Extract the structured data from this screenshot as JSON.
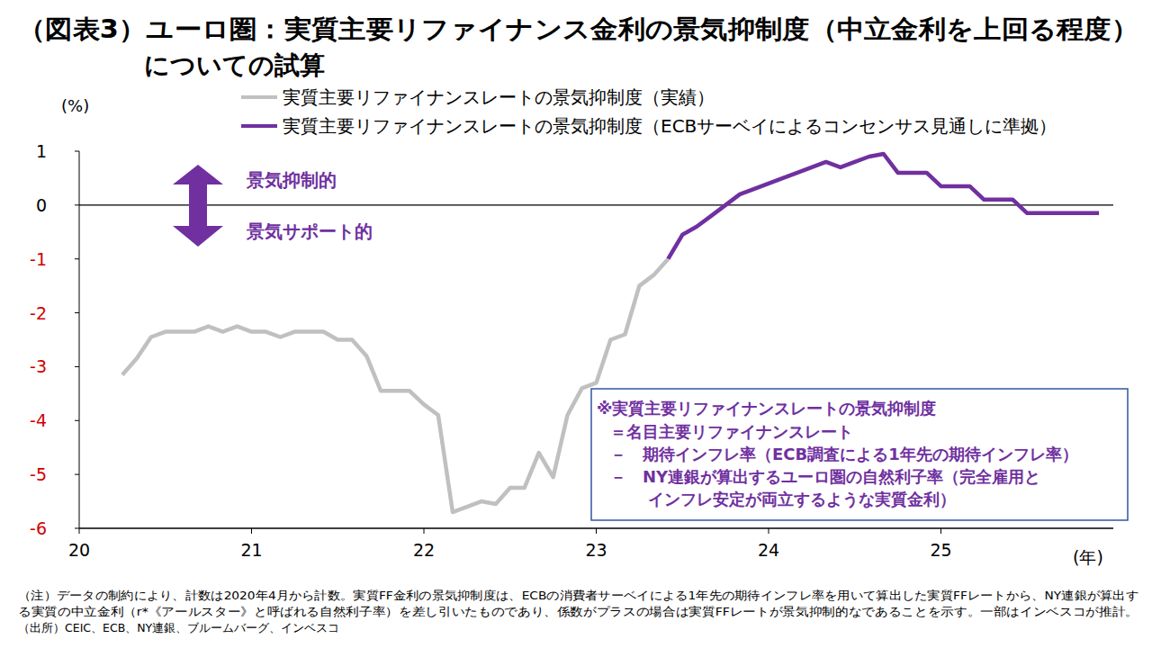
{
  "chart_data": {
    "type": "line",
    "title": [
      "（図表3）ユーロ圏：実質主要リファイナンス金利の景気抑制度（中立金利を上回る程度）",
      "についての試算"
    ],
    "ylabel": "(%)",
    "xlabel": "(年)",
    "legend": "top",
    "grid": false,
    "x": [
      2020.25,
      2020.333,
      2020.417,
      2020.5,
      2020.583,
      2020.667,
      2020.75,
      2020.833,
      2020.917,
      2021.0,
      2021.083,
      2021.167,
      2021.25,
      2021.333,
      2021.417,
      2021.5,
      2021.583,
      2021.667,
      2021.75,
      2021.833,
      2021.917,
      2022.0,
      2022.083,
      2022.167,
      2022.25,
      2022.333,
      2022.417,
      2022.5,
      2022.583,
      2022.667,
      2022.75,
      2022.833,
      2022.917,
      2023.0,
      2023.083,
      2023.167,
      2023.25,
      2023.333,
      2023.417,
      2023.5,
      2023.583,
      2023.667,
      2023.75,
      2023.833,
      2023.917,
      2024.0,
      2024.083,
      2024.167,
      2024.25,
      2024.333,
      2024.417,
      2024.5,
      2024.583,
      2024.667,
      2024.75,
      2024.833,
      2024.917,
      2025.0,
      2025.083,
      2025.167,
      2025.25,
      2025.333,
      2025.417,
      2025.5,
      2025.583,
      2025.667,
      2025.75,
      2025.833,
      2025.917
    ],
    "series": [
      {
        "name": "実質主要リファイナンスレートの景気抑制度（実績）",
        "color": "#c0c0c0",
        "values": [
          -3.15,
          -2.85,
          -2.45,
          -2.35,
          -2.35,
          -2.35,
          -2.25,
          -2.35,
          -2.25,
          -2.35,
          -2.35,
          -2.45,
          -2.35,
          -2.35,
          -2.35,
          -2.5,
          -2.5,
          -2.8,
          -3.45,
          -3.45,
          -3.45,
          -3.7,
          -3.9,
          -5.7,
          -5.6,
          -5.5,
          -5.55,
          -5.25,
          -5.25,
          -4.6,
          -5.05,
          -3.9,
          -3.4,
          -3.3,
          -2.5,
          -2.4,
          -1.5,
          -1.3,
          -1.0,
          null,
          null,
          null,
          null,
          null,
          null,
          null,
          null,
          null,
          null,
          null,
          null,
          null,
          null,
          null,
          null,
          null,
          null,
          null,
          null,
          null,
          null,
          null,
          null,
          null,
          null,
          null,
          null,
          null,
          null
        ]
      },
      {
        "name": "実質主要リファイナンスレートの景気抑制度（ECBサーベイによるコンセンサス見通しに準拠）",
        "color": "#7030a0",
        "values": [
          null,
          null,
          null,
          null,
          null,
          null,
          null,
          null,
          null,
          null,
          null,
          null,
          null,
          null,
          null,
          null,
          null,
          null,
          null,
          null,
          null,
          null,
          null,
          null,
          null,
          null,
          null,
          null,
          null,
          null,
          null,
          null,
          null,
          null,
          null,
          null,
          null,
          null,
          -1.0,
          -0.55,
          -0.4,
          -0.2,
          0.0,
          0.2,
          0.3,
          0.4,
          0.5,
          0.6,
          0.7,
          0.8,
          0.7,
          0.8,
          0.9,
          0.95,
          0.6,
          0.6,
          0.6,
          0.35,
          0.35,
          0.35,
          0.1,
          0.1,
          0.1,
          -0.15,
          -0.15,
          -0.15,
          -0.15,
          -0.15,
          -0.15
        ]
      }
    ],
    "xlim": [
      2020,
      2026
    ],
    "xticks": [
      {
        "value": 2020,
        "label": "20"
      },
      {
        "value": 2021,
        "label": "21"
      },
      {
        "value": 2022,
        "label": "22"
      },
      {
        "value": 2023,
        "label": "23"
      },
      {
        "value": 2024,
        "label": "24"
      },
      {
        "value": 2025,
        "label": "25"
      }
    ],
    "ylim": [
      -6,
      1
    ],
    "yticks": [
      -6,
      -5,
      -4,
      -3,
      -2,
      -1,
      0,
      1
    ],
    "annotations": [
      "景気抑制的",
      "景気サポート的"
    ],
    "annotation_box": [
      "※実質主要リファイナンスレートの景気抑制度",
      "＝名目主要リファイナンスレート",
      "－　期待インフレ率（ECB調査による1年先の期待インフレ率）",
      "－　NY連銀が算出するユーロ圏の自然利子率（完全雇用と",
      "インフレ安定が両立するような実質金利）"
    ],
    "notes": [
      "（注）データの制約により、計数は2020年4月から計数。実質FF金利の景気抑制度は、ECBの消費者サーベイによる1年先の期待インフレ率を用いて算出した実質FFレートから、NY連銀が算出す",
      "る実質の中立金利（r*《アールスター》と呼ばれる自然利子率）を差し引いたものであり、係数がプラスの場合は実質FFレートが景気抑制的なであることを示す。一部はインベスコが推計。",
      "（出所）CEIC、ECB、NY連銀、ブルームバーグ、インベスコ"
    ]
  }
}
